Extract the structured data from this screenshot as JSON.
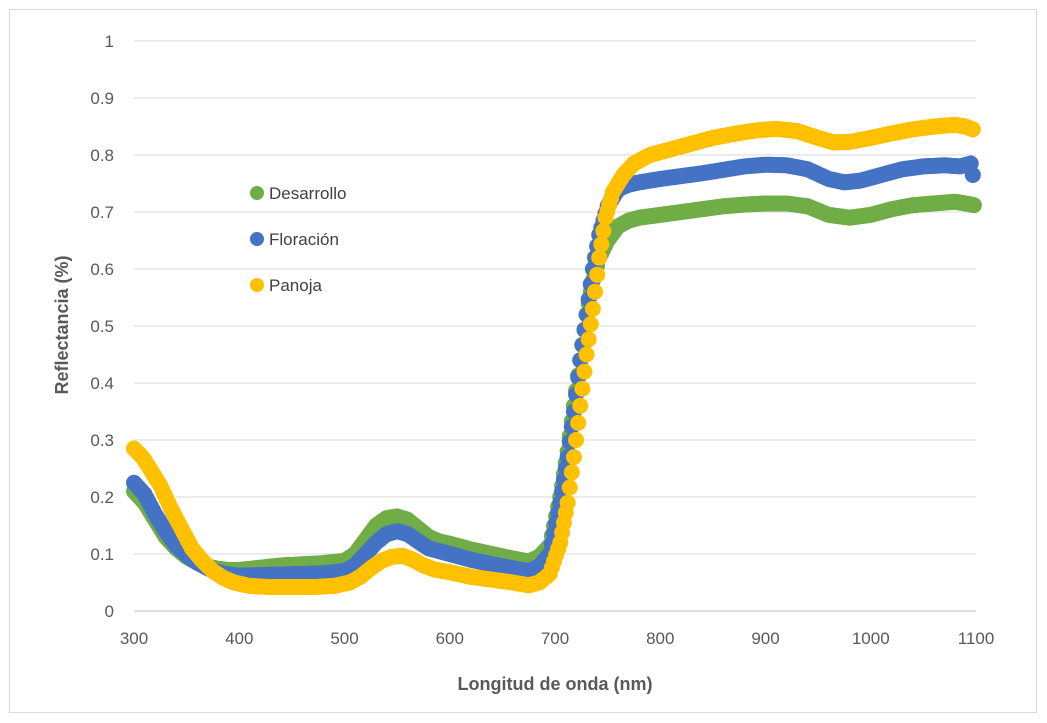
{
  "chart_data": {
    "type": "scatter",
    "xlabel": "Longitud de onda (nm)",
    "ylabel": "Reflectancia (%)",
    "xlim": [
      300,
      1100
    ],
    "ylim": [
      0,
      1
    ],
    "x_ticks": [
      "300",
      "400",
      "500",
      "600",
      "700",
      "800",
      "900",
      "1000",
      "1100"
    ],
    "y_ticks": [
      "0",
      "0.1",
      "0.2",
      "0.3",
      "0.4",
      "0.5",
      "0.6",
      "0.7",
      "0.8",
      "0.9",
      "1"
    ],
    "grid": "horizontal",
    "legend_position": "upper-left inside",
    "series": [
      {
        "name": "Desarrollo",
        "color": "#70ad47",
        "points": [
          [
            300,
            0.21
          ],
          [
            310,
            0.19
          ],
          [
            320,
            0.16
          ],
          [
            330,
            0.13
          ],
          [
            340,
            0.11
          ],
          [
            350,
            0.095
          ],
          [
            360,
            0.085
          ],
          [
            370,
            0.078
          ],
          [
            380,
            0.074
          ],
          [
            390,
            0.072
          ],
          [
            400,
            0.072
          ],
          [
            420,
            0.076
          ],
          [
            440,
            0.08
          ],
          [
            460,
            0.082
          ],
          [
            480,
            0.084
          ],
          [
            500,
            0.088
          ],
          [
            510,
            0.1
          ],
          [
            520,
            0.125
          ],
          [
            530,
            0.15
          ],
          [
            540,
            0.163
          ],
          [
            550,
            0.166
          ],
          [
            560,
            0.16
          ],
          [
            570,
            0.145
          ],
          [
            580,
            0.13
          ],
          [
            590,
            0.122
          ],
          [
            600,
            0.118
          ],
          [
            620,
            0.108
          ],
          [
            640,
            0.1
          ],
          [
            660,
            0.092
          ],
          [
            675,
            0.087
          ],
          [
            685,
            0.095
          ],
          [
            695,
            0.115
          ],
          [
            705,
            0.2
          ],
          [
            712,
            0.28
          ],
          [
            718,
            0.36
          ],
          [
            724,
            0.44
          ],
          [
            730,
            0.52
          ],
          [
            736,
            0.58
          ],
          [
            742,
            0.62
          ],
          [
            750,
            0.65
          ],
          [
            760,
            0.675
          ],
          [
            770,
            0.685
          ],
          [
            780,
            0.69
          ],
          [
            800,
            0.695
          ],
          [
            820,
            0.7
          ],
          [
            840,
            0.705
          ],
          [
            860,
            0.71
          ],
          [
            880,
            0.713
          ],
          [
            900,
            0.715
          ],
          [
            920,
            0.715
          ],
          [
            940,
            0.71
          ],
          [
            960,
            0.695
          ],
          [
            980,
            0.69
          ],
          [
            1000,
            0.695
          ],
          [
            1020,
            0.705
          ],
          [
            1040,
            0.712
          ],
          [
            1060,
            0.715
          ],
          [
            1080,
            0.718
          ],
          [
            1090,
            0.715
          ],
          [
            1098,
            0.712
          ]
        ]
      },
      {
        "name": "Floración",
        "color": "#4472c4",
        "points": [
          [
            300,
            0.225
          ],
          [
            310,
            0.205
          ],
          [
            320,
            0.17
          ],
          [
            330,
            0.14
          ],
          [
            340,
            0.115
          ],
          [
            350,
            0.098
          ],
          [
            360,
            0.085
          ],
          [
            370,
            0.075
          ],
          [
            380,
            0.068
          ],
          [
            390,
            0.064
          ],
          [
            400,
            0.062
          ],
          [
            420,
            0.063
          ],
          [
            440,
            0.064
          ],
          [
            460,
            0.065
          ],
          [
            480,
            0.066
          ],
          [
            500,
            0.07
          ],
          [
            510,
            0.08
          ],
          [
            520,
            0.1
          ],
          [
            530,
            0.12
          ],
          [
            540,
            0.135
          ],
          [
            550,
            0.14
          ],
          [
            560,
            0.135
          ],
          [
            570,
            0.122
          ],
          [
            580,
            0.11
          ],
          [
            590,
            0.105
          ],
          [
            600,
            0.1
          ],
          [
            620,
            0.09
          ],
          [
            640,
            0.082
          ],
          [
            660,
            0.075
          ],
          [
            675,
            0.07
          ],
          [
            685,
            0.078
          ],
          [
            695,
            0.1
          ],
          [
            705,
            0.19
          ],
          [
            712,
            0.27
          ],
          [
            718,
            0.35
          ],
          [
            724,
            0.44
          ],
          [
            730,
            0.52
          ],
          [
            736,
            0.6
          ],
          [
            742,
            0.66
          ],
          [
            750,
            0.71
          ],
          [
            760,
            0.74
          ],
          [
            770,
            0.748
          ],
          [
            780,
            0.752
          ],
          [
            800,
            0.758
          ],
          [
            820,
            0.763
          ],
          [
            840,
            0.768
          ],
          [
            860,
            0.774
          ],
          [
            880,
            0.78
          ],
          [
            900,
            0.783
          ],
          [
            920,
            0.782
          ],
          [
            940,
            0.775
          ],
          [
            960,
            0.758
          ],
          [
            975,
            0.752
          ],
          [
            990,
            0.755
          ],
          [
            1010,
            0.765
          ],
          [
            1030,
            0.775
          ],
          [
            1050,
            0.78
          ],
          [
            1070,
            0.782
          ],
          [
            1085,
            0.78
          ],
          [
            1095,
            0.785
          ],
          [
            1097,
            0.765
          ]
        ]
      },
      {
        "name": "Panoja",
        "color": "#ffc000",
        "points": [
          [
            300,
            0.285
          ],
          [
            308,
            0.27
          ],
          [
            315,
            0.25
          ],
          [
            325,
            0.22
          ],
          [
            335,
            0.18
          ],
          [
            345,
            0.145
          ],
          [
            355,
            0.11
          ],
          [
            365,
            0.088
          ],
          [
            375,
            0.07
          ],
          [
            385,
            0.058
          ],
          [
            395,
            0.05
          ],
          [
            410,
            0.044
          ],
          [
            430,
            0.042
          ],
          [
            450,
            0.042
          ],
          [
            470,
            0.042
          ],
          [
            490,
            0.044
          ],
          [
            505,
            0.05
          ],
          [
            515,
            0.06
          ],
          [
            525,
            0.075
          ],
          [
            535,
            0.088
          ],
          [
            545,
            0.095
          ],
          [
            555,
            0.097
          ],
          [
            565,
            0.09
          ],
          [
            575,
            0.08
          ],
          [
            585,
            0.073
          ],
          [
            600,
            0.068
          ],
          [
            620,
            0.06
          ],
          [
            640,
            0.055
          ],
          [
            660,
            0.05
          ],
          [
            675,
            0.045
          ],
          [
            685,
            0.05
          ],
          [
            695,
            0.065
          ],
          [
            705,
            0.12
          ],
          [
            712,
            0.19
          ],
          [
            718,
            0.27
          ],
          [
            724,
            0.36
          ],
          [
            730,
            0.45
          ],
          [
            736,
            0.53
          ],
          [
            742,
            0.62
          ],
          [
            748,
            0.69
          ],
          [
            755,
            0.735
          ],
          [
            765,
            0.765
          ],
          [
            775,
            0.785
          ],
          [
            790,
            0.8
          ],
          [
            810,
            0.81
          ],
          [
            830,
            0.82
          ],
          [
            850,
            0.83
          ],
          [
            870,
            0.837
          ],
          [
            890,
            0.843
          ],
          [
            910,
            0.846
          ],
          [
            930,
            0.842
          ],
          [
            950,
            0.83
          ],
          [
            965,
            0.822
          ],
          [
            980,
            0.823
          ],
          [
            1000,
            0.83
          ],
          [
            1020,
            0.838
          ],
          [
            1040,
            0.845
          ],
          [
            1060,
            0.85
          ],
          [
            1080,
            0.853
          ],
          [
            1090,
            0.85
          ],
          [
            1097,
            0.845
          ]
        ]
      }
    ]
  }
}
